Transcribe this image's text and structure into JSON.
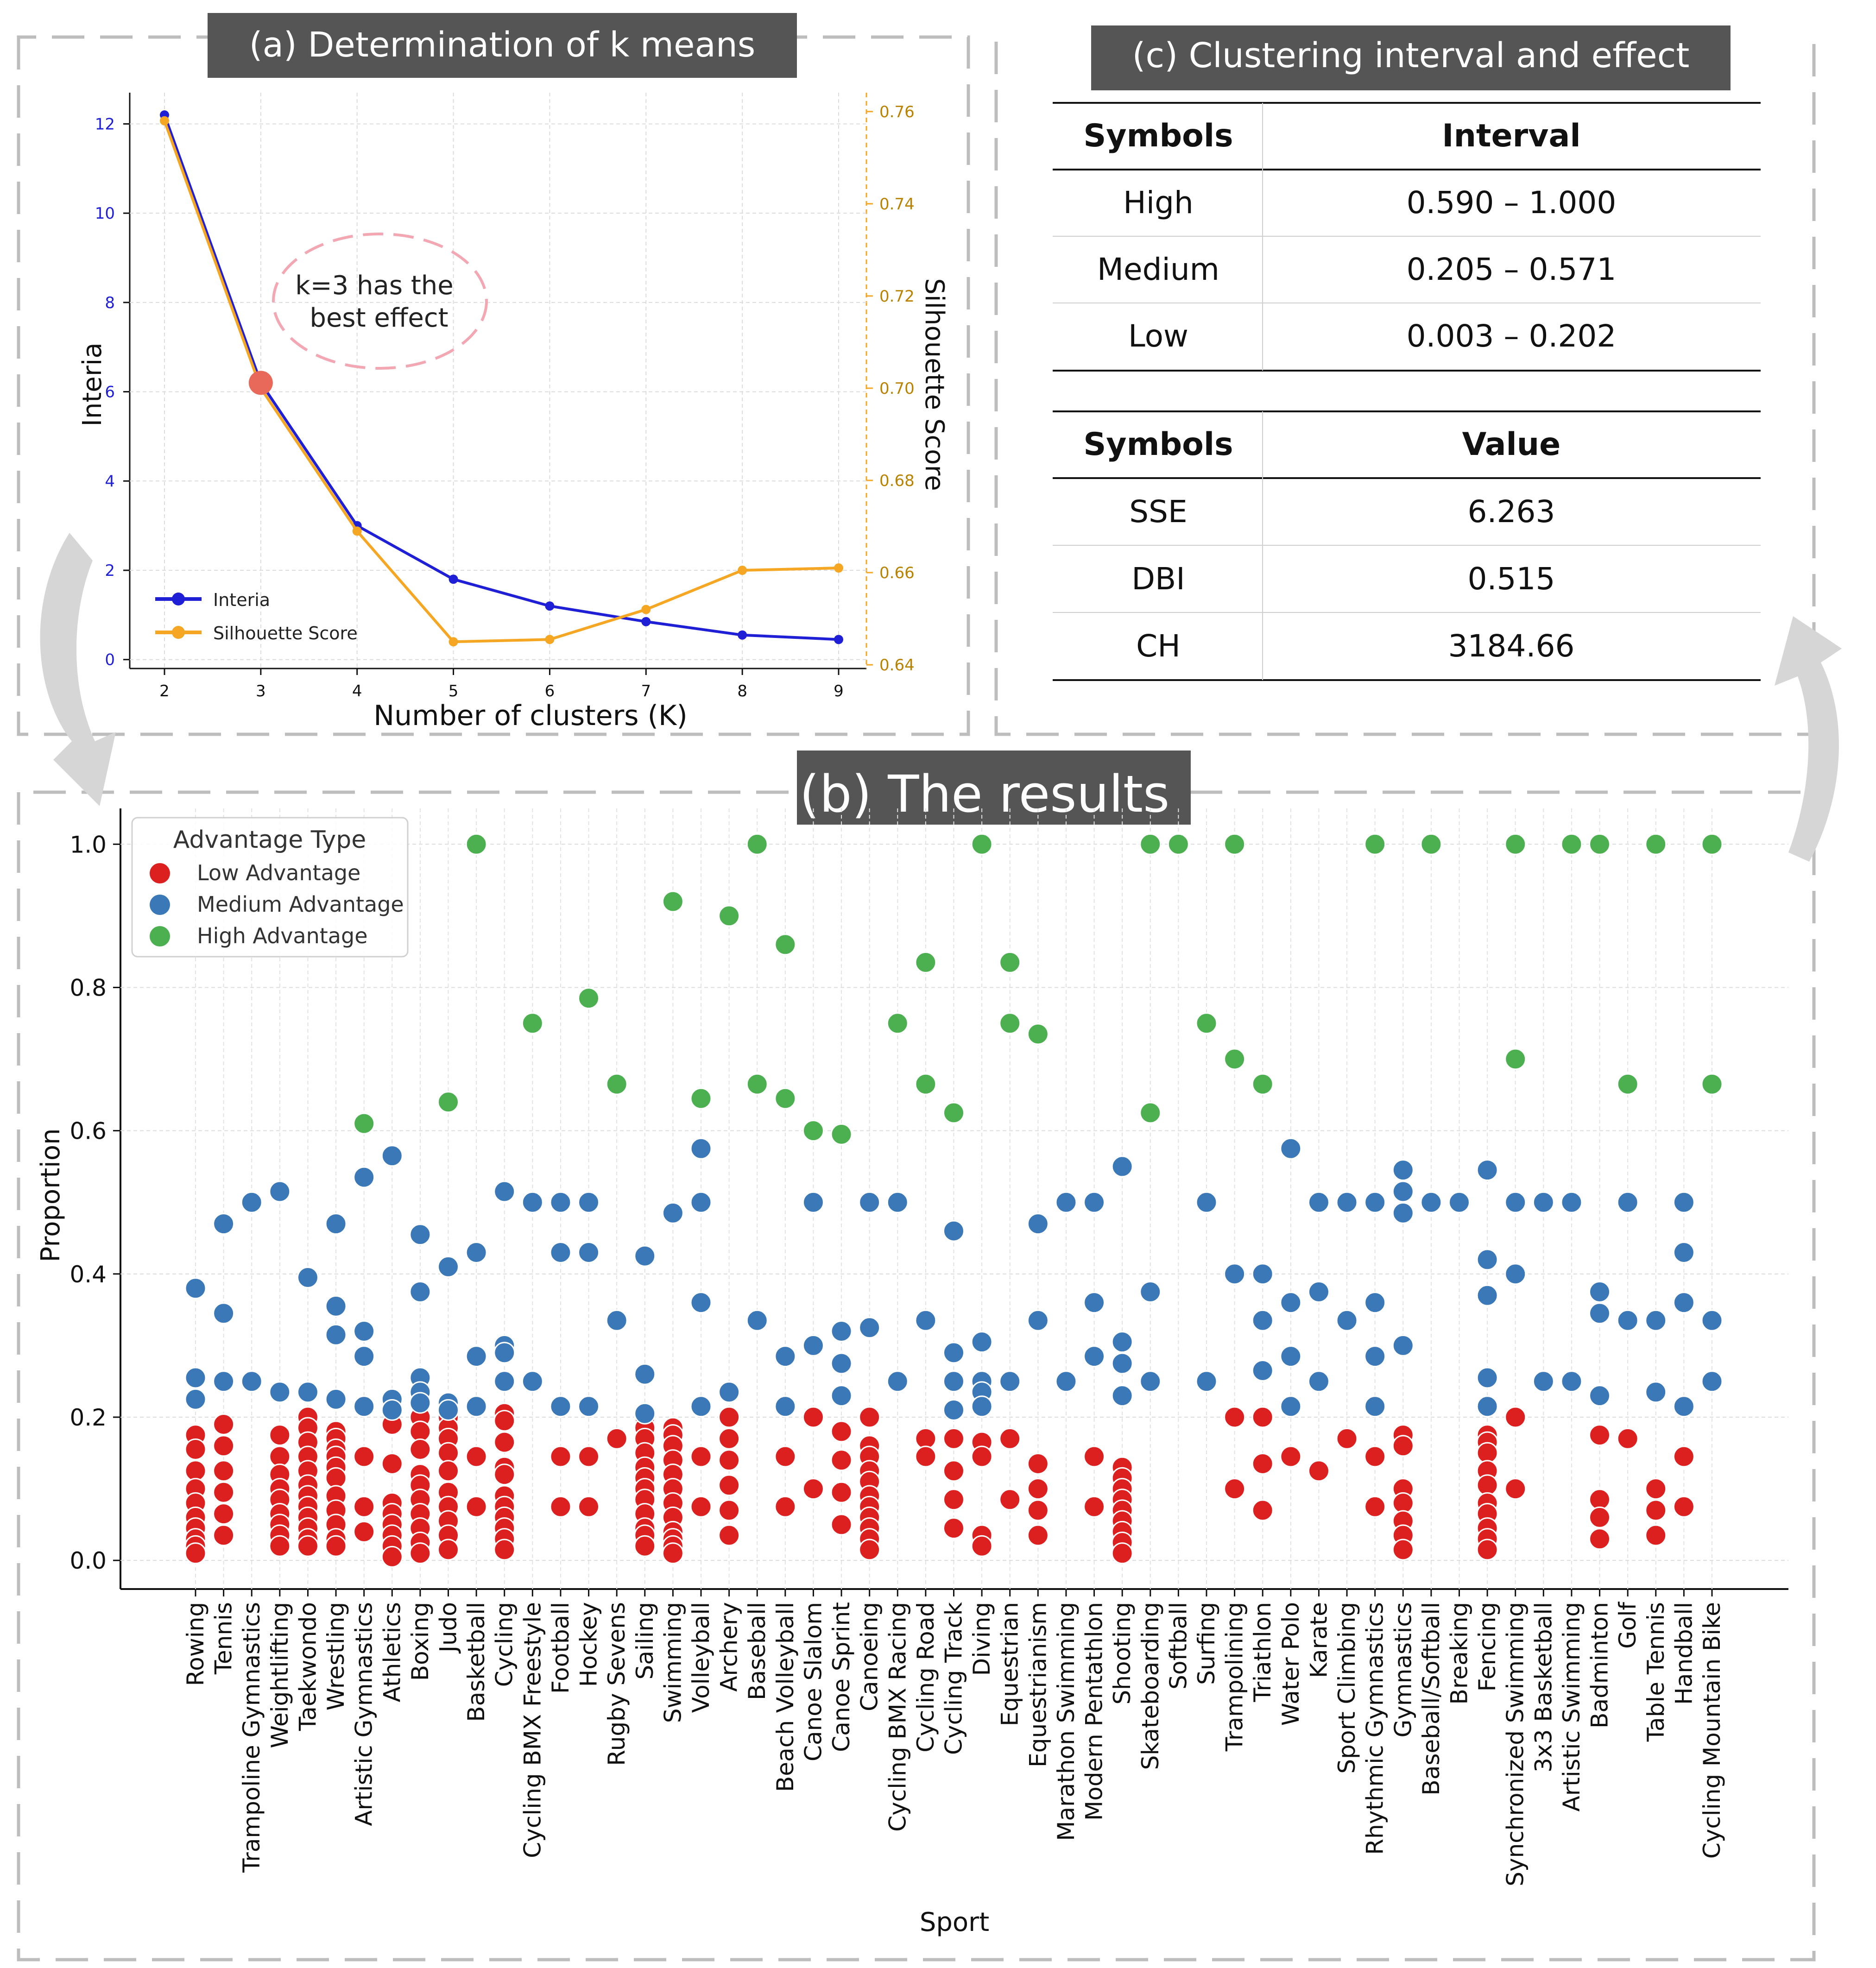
{
  "panel_a": {
    "header": "(a) Determination of k means",
    "annotation_line1": "k=3 has the",
    "annotation_line2": "best effect"
  },
  "panel_b": {
    "header": "(b) The results"
  },
  "panel_c": {
    "header": "(c) Clustering interval and effect",
    "interval_table": {
      "headers": [
        "Symbols",
        "Interval"
      ],
      "rows": [
        [
          "High",
          "0.590 – 1.000"
        ],
        [
          "Medium",
          "0.205 – 0.571"
        ],
        [
          "Low",
          "0.003 – 0.202"
        ]
      ]
    },
    "metric_table": {
      "headers": [
        "Symbols",
        "Value"
      ],
      "rows": [
        [
          "SSE",
          "6.263"
        ],
        [
          "DBI",
          "0.515"
        ],
        [
          "CH",
          "3184.66"
        ]
      ]
    }
  },
  "colors": {
    "inertia": "#1f1fd6",
    "silhouette": "#f5a623",
    "low": "#dc2020",
    "medium": "#3b78b8",
    "high": "#4caf50",
    "header_bg": "#555555",
    "highlight": "#e8685a",
    "ellipse": "#f2a7b3"
  },
  "chart_data": [
    {
      "type": "line",
      "title": "(a) Determination of k means",
      "xlabel": "Number of clusters (K)",
      "ylabel": "Interia",
      "y2label": "Silhouette Score",
      "x": [
        2,
        3,
        4,
        5,
        6,
        7,
        8,
        9
      ],
      "x_ticks": [
        "2",
        "3",
        "4",
        "5",
        "6",
        "7",
        "8",
        "9"
      ],
      "ylim": [
        -0.2,
        12.7
      ],
      "y_ticks": [
        "0",
        "2",
        "4",
        "6",
        "8",
        "10",
        "12"
      ],
      "y2lim": [
        0.6392,
        0.7641
      ],
      "y2_ticks": [
        "0.64",
        "0.66",
        "0.68",
        "0.70",
        "0.72",
        "0.74",
        "0.76"
      ],
      "series": [
        {
          "name": "Interia",
          "axis": "left",
          "values": [
            12.2,
            6.2,
            3.0,
            1.8,
            1.2,
            0.85,
            0.55,
            0.45
          ]
        },
        {
          "name": "Silhouette Score",
          "axis": "right",
          "values": [
            0.758,
            0.7,
            0.669,
            0.645,
            0.6455,
            0.652,
            0.6605,
            0.661
          ]
        }
      ],
      "highlight": {
        "x": 3,
        "value": 6.2
      },
      "grid": true,
      "legend": "lower-left"
    },
    {
      "type": "scatter",
      "title": "(b) The results",
      "xlabel": "Sport",
      "ylabel": "Proportion",
      "ylim": [
        -0.04,
        1.05
      ],
      "y_ticks": [
        "0.0",
        "0.2",
        "0.4",
        "0.6",
        "0.8",
        "1.0"
      ],
      "legend_title": "Advantage Type",
      "legend": [
        "Low Advantage",
        "Medium Advantage",
        "High Advantage"
      ],
      "grid": true,
      "categories": [
        "Rowing",
        "Tennis",
        "Trampoline Gymnastics",
        "Weightlifting",
        "Taekwondo",
        "Wrestling",
        "Artistic Gymnastics",
        "Athletics",
        "Boxing",
        "Judo",
        "Basketball",
        "Cycling",
        "Cycling BMX Freestyle",
        "Football",
        "Hockey",
        "Rugby Sevens",
        "Sailing",
        "Swimming",
        "Volleyball",
        "Archery",
        "Baseball",
        "Beach Volleyball",
        "Canoe Slalom",
        "Canoe Sprint",
        "Canoeing",
        "Cycling BMX Racing",
        "Cycling Road",
        "Cycling Track",
        "Diving",
        "Equestrian",
        "Equestrianism",
        "Marathon Swimming",
        "Modern Pentathlon",
        "Shooting",
        "Skateboarding",
        "Softball",
        "Surfing",
        "Trampolining",
        "Triathlon",
        "Water Polo",
        "Karate",
        "Sport Climbing",
        "Rhythmic Gymnastics",
        "Gymnastics",
        "Baseball/Softball",
        "Breaking",
        "Fencing",
        "Synchronized Swimming",
        "3x3 Basketball",
        "Artistic Swimming",
        "Badminton",
        "Golf",
        "Table Tennis",
        "Handball",
        "Cycling Mountain Bike"
      ],
      "low": [
        [
          0.175,
          0.155,
          0.125,
          0.1,
          0.08,
          0.06,
          0.045,
          0.03,
          0.02,
          0.01
        ],
        [
          0.19,
          0.16,
          0.125,
          0.095,
          0.065,
          0.035
        ],
        [],
        [
          0.175,
          0.145,
          0.12,
          0.1,
          0.085,
          0.065,
          0.05,
          0.035,
          0.02
        ],
        [
          0.2,
          0.185,
          0.165,
          0.145,
          0.125,
          0.105,
          0.09,
          0.075,
          0.06,
          0.045,
          0.03,
          0.02
        ],
        [
          0.18,
          0.17,
          0.155,
          0.145,
          0.13,
          0.115,
          0.09,
          0.07,
          0.05,
          0.03,
          0.02
        ],
        [
          0.145,
          0.075,
          0.04
        ],
        [
          0.19,
          0.135,
          0.08,
          0.065,
          0.05,
          0.035,
          0.02,
          0.005
        ],
        [
          0.2,
          0.18,
          0.155,
          0.12,
          0.105,
          0.085,
          0.065,
          0.045,
          0.025,
          0.01
        ],
        [
          0.2,
          0.185,
          0.17,
          0.15,
          0.125,
          0.095,
          0.075,
          0.055,
          0.035,
          0.015
        ],
        [
          0.145,
          0.075
        ],
        [
          0.205,
          0.195,
          0.165,
          0.13,
          0.12,
          0.09,
          0.075,
          0.06,
          0.045,
          0.03,
          0.015
        ],
        [],
        [
          0.145,
          0.075
        ],
        [
          0.145,
          0.075
        ],
        [
          0.17
        ],
        [
          0.2,
          0.185,
          0.17,
          0.15,
          0.13,
          0.115,
          0.1,
          0.085,
          0.065,
          0.045,
          0.035,
          0.02
        ],
        [
          0.185,
          0.175,
          0.16,
          0.14,
          0.12,
          0.1,
          0.08,
          0.06,
          0.04,
          0.03,
          0.02,
          0.01
        ],
        [
          0.145,
          0.075
        ],
        [
          0.2,
          0.17,
          0.14,
          0.105,
          0.07,
          0.035
        ],
        [],
        [
          0.145,
          0.075
        ],
        [
          0.2,
          0.1
        ],
        [
          0.18,
          0.14,
          0.095,
          0.05
        ],
        [
          0.2,
          0.16,
          0.145,
          0.125,
          0.11,
          0.09,
          0.075,
          0.06,
          0.045,
          0.03,
          0.015
        ],
        [],
        [
          0.17,
          0.145
        ],
        [
          0.17,
          0.125,
          0.085,
          0.045
        ],
        [
          0.165,
          0.145,
          0.035,
          0.02
        ],
        [
          0.17,
          0.085
        ],
        [
          0.135,
          0.1,
          0.07,
          0.035
        ],
        [],
        [
          0.145,
          0.075
        ],
        [
          0.13,
          0.115,
          0.1,
          0.085,
          0.07,
          0.055,
          0.04,
          0.025,
          0.01
        ],
        [],
        [],
        [],
        [
          0.2,
          0.1
        ],
        [
          0.2,
          0.135,
          0.07
        ],
        [
          0.145
        ],
        [
          0.125
        ],
        [
          0.17
        ],
        [
          0.145,
          0.075
        ],
        [
          0.175,
          0.16,
          0.1,
          0.08,
          0.055,
          0.035,
          0.015
        ],
        [],
        [],
        [
          0.175,
          0.165,
          0.15,
          0.125,
          0.105,
          0.08,
          0.065,
          0.045,
          0.03,
          0.015
        ],
        [
          0.2,
          0.1
        ],
        [],
        [],
        [
          0.175,
          0.085,
          0.06,
          0.03
        ],
        [
          0.17
        ],
        [
          0.1,
          0.07,
          0.035
        ],
        [
          0.145,
          0.075
        ],
        []
      ],
      "medium": [
        [
          0.38,
          0.255,
          0.225
        ],
        [
          0.47,
          0.345,
          0.25
        ],
        [
          0.5,
          0.25
        ],
        [
          0.515,
          0.235
        ],
        [
          0.395,
          0.235
        ],
        [
          0.47,
          0.355,
          0.315,
          0.225
        ],
        [
          0.535,
          0.32,
          0.285,
          0.215
        ],
        [
          0.565,
          0.225,
          0.21
        ],
        [
          0.455,
          0.375,
          0.255,
          0.235,
          0.22
        ],
        [
          0.41,
          0.22,
          0.21
        ],
        [
          0.43,
          0.285,
          0.215
        ],
        [
          0.515,
          0.3,
          0.29,
          0.25
        ],
        [
          0.5,
          0.25
        ],
        [
          0.5,
          0.43,
          0.215
        ],
        [
          0.5,
          0.43,
          0.215
        ],
        [
          0.335
        ],
        [
          0.425,
          0.26,
          0.205
        ],
        [
          0.485
        ],
        [
          0.575,
          0.5,
          0.36,
          0.215
        ],
        [
          0.235
        ],
        [
          0.335
        ],
        [
          0.285,
          0.215
        ],
        [
          0.5,
          0.3
        ],
        [
          0.32,
          0.275,
          0.23
        ],
        [
          0.5,
          0.325
        ],
        [
          0.5,
          0.25
        ],
        [
          0.335
        ],
        [
          0.46,
          0.29,
          0.25,
          0.21
        ],
        [
          0.305,
          0.25,
          0.235,
          0.215
        ],
        [
          0.25
        ],
        [
          0.47,
          0.335
        ],
        [
          0.5,
          0.25
        ],
        [
          0.5,
          0.36,
          0.285
        ],
        [
          0.55,
          0.305,
          0.275,
          0.23
        ],
        [
          0.375,
          0.25
        ],
        [],
        [
          0.5,
          0.25
        ],
        [
          0.4
        ],
        [
          0.4,
          0.335,
          0.265
        ],
        [
          0.575,
          0.36,
          0.285,
          0.215
        ],
        [
          0.5,
          0.375,
          0.25
        ],
        [
          0.5,
          0.335
        ],
        [
          0.5,
          0.36,
          0.285,
          0.215
        ],
        [
          0.545,
          0.515,
          0.485,
          0.3
        ],
        [
          0.5
        ],
        [
          0.5
        ],
        [
          0.545,
          0.42,
          0.37,
          0.255,
          0.215
        ],
        [
          0.5,
          0.4
        ],
        [
          0.5,
          0.25
        ],
        [
          0.5,
          0.25
        ],
        [
          0.375,
          0.345,
          0.23
        ],
        [
          0.5,
          0.335
        ],
        [
          0.335,
          0.235
        ],
        [
          0.5,
          0.43,
          0.36,
          0.215
        ],
        [
          0.335,
          0.25
        ]
      ],
      "high": [
        [],
        [],
        [],
        [],
        [],
        [],
        [
          0.61
        ],
        [],
        [],
        [
          0.64
        ],
        [
          1.0
        ],
        [],
        [
          0.75
        ],
        [],
        [
          0.785
        ],
        [
          0.665
        ],
        [],
        [
          0.92
        ],
        [
          0.645
        ],
        [
          0.9
        ],
        [
          1.0,
          0.665
        ],
        [
          0.86,
          0.645
        ],
        [
          0.6
        ],
        [
          0.595
        ],
        [],
        [
          0.75
        ],
        [
          0.835,
          0.665
        ],
        [
          0.625
        ],
        [
          1.0
        ],
        [
          0.835,
          0.75
        ],
        [
          0.735
        ],
        [],
        [],
        [],
        [
          1.0,
          0.625
        ],
        [
          1.0
        ],
        [
          0.75
        ],
        [
          1.0,
          0.7
        ],
        [
          0.665
        ],
        [],
        [],
        [],
        [
          1.0
        ],
        [],
        [
          1.0
        ],
        [],
        [],
        [
          1.0,
          0.7
        ],
        [],
        [
          1.0
        ],
        [
          1.0
        ],
        [
          0.665
        ],
        [
          1.0
        ],
        [],
        [
          1.0,
          0.665
        ]
      ]
    }
  ]
}
